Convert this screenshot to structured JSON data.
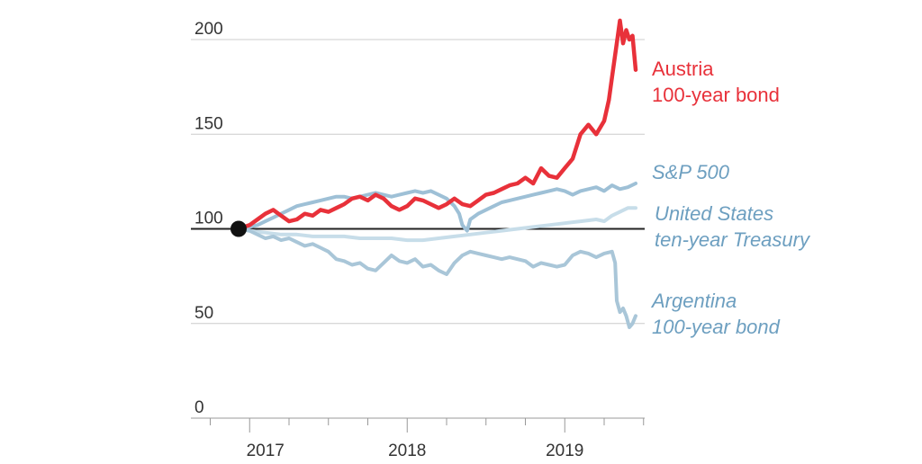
{
  "chart_data": {
    "type": "line",
    "title": "",
    "xlabel": "",
    "ylabel": "",
    "ylim": [
      0,
      200
    ],
    "yticks": [
      0,
      50,
      100,
      150,
      200
    ],
    "x_tick_labels": [
      {
        "label": "2017",
        "x": 2017.1
      },
      {
        "label": "2018",
        "x": 2018.0
      },
      {
        "label": "2019",
        "x": 2019.0
      }
    ],
    "baseline": 100,
    "start_marker": {
      "x": 2016.93,
      "y": 100
    },
    "grid": true,
    "legend": "direct-labels-right",
    "colors": {
      "austria": "#e8313a",
      "sp500": "#9ec0d6",
      "treasury": "#c7dde9",
      "argentina": "#a9c6d8",
      "baseline": "#222222",
      "grid": "#cccccc",
      "label_blue": "#6d9fc0"
    },
    "series": [
      {
        "key": "austria",
        "label_lines": [
          "Austria",
          "100-year bond"
        ],
        "points": [
          [
            2016.93,
            100
          ],
          [
            2017.0,
            102
          ],
          [
            2017.05,
            105
          ],
          [
            2017.1,
            108
          ],
          [
            2017.15,
            110
          ],
          [
            2017.2,
            107
          ],
          [
            2017.25,
            104
          ],
          [
            2017.3,
            105
          ],
          [
            2017.35,
            108
          ],
          [
            2017.4,
            107
          ],
          [
            2017.45,
            110
          ],
          [
            2017.5,
            109
          ],
          [
            2017.55,
            111
          ],
          [
            2017.6,
            113
          ],
          [
            2017.65,
            116
          ],
          [
            2017.7,
            117
          ],
          [
            2017.75,
            115
          ],
          [
            2017.8,
            118
          ],
          [
            2017.85,
            116
          ],
          [
            2017.9,
            112
          ],
          [
            2017.95,
            110
          ],
          [
            2018.0,
            112
          ],
          [
            2018.05,
            116
          ],
          [
            2018.1,
            115
          ],
          [
            2018.15,
            113
          ],
          [
            2018.2,
            111
          ],
          [
            2018.25,
            113
          ],
          [
            2018.3,
            116
          ],
          [
            2018.35,
            113
          ],
          [
            2018.4,
            112
          ],
          [
            2018.45,
            115
          ],
          [
            2018.5,
            118
          ],
          [
            2018.55,
            119
          ],
          [
            2018.6,
            121
          ],
          [
            2018.65,
            123
          ],
          [
            2018.7,
            124
          ],
          [
            2018.75,
            127
          ],
          [
            2018.8,
            124
          ],
          [
            2018.85,
            132
          ],
          [
            2018.9,
            128
          ],
          [
            2018.95,
            127
          ],
          [
            2019.0,
            132
          ],
          [
            2019.05,
            137
          ],
          [
            2019.1,
            150
          ],
          [
            2019.15,
            155
          ],
          [
            2019.2,
            150
          ],
          [
            2019.25,
            157
          ],
          [
            2019.28,
            168
          ],
          [
            2019.3,
            180
          ],
          [
            2019.33,
            198
          ],
          [
            2019.35,
            210
          ],
          [
            2019.37,
            198
          ],
          [
            2019.39,
            205
          ],
          [
            2019.41,
            200
          ],
          [
            2019.43,
            202
          ],
          [
            2019.45,
            184
          ]
        ]
      },
      {
        "key": "sp500",
        "label_lines": [
          "S&P 500"
        ],
        "points": [
          [
            2016.93,
            100
          ],
          [
            2017.0,
            101
          ],
          [
            2017.05,
            102
          ],
          [
            2017.1,
            104
          ],
          [
            2017.15,
            106
          ],
          [
            2017.2,
            108
          ],
          [
            2017.25,
            110
          ],
          [
            2017.3,
            112
          ],
          [
            2017.35,
            113
          ],
          [
            2017.4,
            114
          ],
          [
            2017.45,
            115
          ],
          [
            2017.5,
            116
          ],
          [
            2017.55,
            117
          ],
          [
            2017.6,
            117
          ],
          [
            2017.65,
            116
          ],
          [
            2017.7,
            117
          ],
          [
            2017.75,
            118
          ],
          [
            2017.8,
            119
          ],
          [
            2017.85,
            118
          ],
          [
            2017.9,
            117
          ],
          [
            2017.95,
            118
          ],
          [
            2018.0,
            119
          ],
          [
            2018.05,
            120
          ],
          [
            2018.1,
            119
          ],
          [
            2018.15,
            120
          ],
          [
            2018.2,
            118
          ],
          [
            2018.25,
            116
          ],
          [
            2018.3,
            112
          ],
          [
            2018.33,
            108
          ],
          [
            2018.35,
            102
          ],
          [
            2018.38,
            99
          ],
          [
            2018.4,
            105
          ],
          [
            2018.45,
            108
          ],
          [
            2018.5,
            110
          ],
          [
            2018.55,
            112
          ],
          [
            2018.6,
            114
          ],
          [
            2018.65,
            115
          ],
          [
            2018.7,
            116
          ],
          [
            2018.75,
            117
          ],
          [
            2018.8,
            118
          ],
          [
            2018.85,
            119
          ],
          [
            2018.9,
            120
          ],
          [
            2018.95,
            121
          ],
          [
            2019.0,
            120
          ],
          [
            2019.05,
            118
          ],
          [
            2019.1,
            120
          ],
          [
            2019.15,
            121
          ],
          [
            2019.2,
            122
          ],
          [
            2019.25,
            120
          ],
          [
            2019.3,
            123
          ],
          [
            2019.35,
            121
          ],
          [
            2019.4,
            122
          ],
          [
            2019.45,
            124
          ]
        ]
      },
      {
        "key": "treasury",
        "label_lines": [
          "United States",
          "ten-year Treasury"
        ],
        "points": [
          [
            2016.93,
            100
          ],
          [
            2017.0,
            99
          ],
          [
            2017.1,
            98
          ],
          [
            2017.2,
            97
          ],
          [
            2017.3,
            97
          ],
          [
            2017.4,
            96
          ],
          [
            2017.5,
            96
          ],
          [
            2017.6,
            96
          ],
          [
            2017.7,
            95
          ],
          [
            2017.8,
            95
          ],
          [
            2017.9,
            95
          ],
          [
            2018.0,
            94
          ],
          [
            2018.1,
            94
          ],
          [
            2018.2,
            95
          ],
          [
            2018.3,
            96
          ],
          [
            2018.4,
            97
          ],
          [
            2018.5,
            98
          ],
          [
            2018.6,
            99
          ],
          [
            2018.7,
            100
          ],
          [
            2018.8,
            101
          ],
          [
            2018.9,
            102
          ],
          [
            2019.0,
            103
          ],
          [
            2019.1,
            104
          ],
          [
            2019.2,
            105
          ],
          [
            2019.25,
            104
          ],
          [
            2019.3,
            107
          ],
          [
            2019.35,
            109
          ],
          [
            2019.4,
            111
          ],
          [
            2019.45,
            111
          ]
        ]
      },
      {
        "key": "argentina",
        "label_lines": [
          "Argentina",
          "100-year bond"
        ],
        "points": [
          [
            2016.93,
            100
          ],
          [
            2017.0,
            99
          ],
          [
            2017.05,
            97
          ],
          [
            2017.1,
            95
          ],
          [
            2017.15,
            96
          ],
          [
            2017.2,
            94
          ],
          [
            2017.25,
            95
          ],
          [
            2017.3,
            93
          ],
          [
            2017.35,
            91
          ],
          [
            2017.4,
            92
          ],
          [
            2017.45,
            90
          ],
          [
            2017.5,
            88
          ],
          [
            2017.55,
            84
          ],
          [
            2017.6,
            83
          ],
          [
            2017.65,
            81
          ],
          [
            2017.7,
            82
          ],
          [
            2017.75,
            79
          ],
          [
            2017.8,
            78
          ],
          [
            2017.85,
            82
          ],
          [
            2017.9,
            86
          ],
          [
            2017.95,
            83
          ],
          [
            2018.0,
            82
          ],
          [
            2018.05,
            84
          ],
          [
            2018.1,
            80
          ],
          [
            2018.15,
            81
          ],
          [
            2018.2,
            78
          ],
          [
            2018.25,
            76
          ],
          [
            2018.3,
            82
          ],
          [
            2018.35,
            86
          ],
          [
            2018.4,
            88
          ],
          [
            2018.45,
            87
          ],
          [
            2018.5,
            86
          ],
          [
            2018.55,
            85
          ],
          [
            2018.6,
            84
          ],
          [
            2018.65,
            85
          ],
          [
            2018.7,
            84
          ],
          [
            2018.75,
            83
          ],
          [
            2018.8,
            80
          ],
          [
            2018.85,
            82
          ],
          [
            2018.9,
            81
          ],
          [
            2018.95,
            80
          ],
          [
            2019.0,
            81
          ],
          [
            2019.05,
            86
          ],
          [
            2019.1,
            88
          ],
          [
            2019.15,
            87
          ],
          [
            2019.2,
            85
          ],
          [
            2019.25,
            87
          ],
          [
            2019.3,
            88
          ],
          [
            2019.32,
            82
          ],
          [
            2019.33,
            62
          ],
          [
            2019.35,
            56
          ],
          [
            2019.37,
            58
          ],
          [
            2019.39,
            54
          ],
          [
            2019.41,
            48
          ],
          [
            2019.43,
            50
          ],
          [
            2019.45,
            54
          ]
        ]
      }
    ]
  }
}
